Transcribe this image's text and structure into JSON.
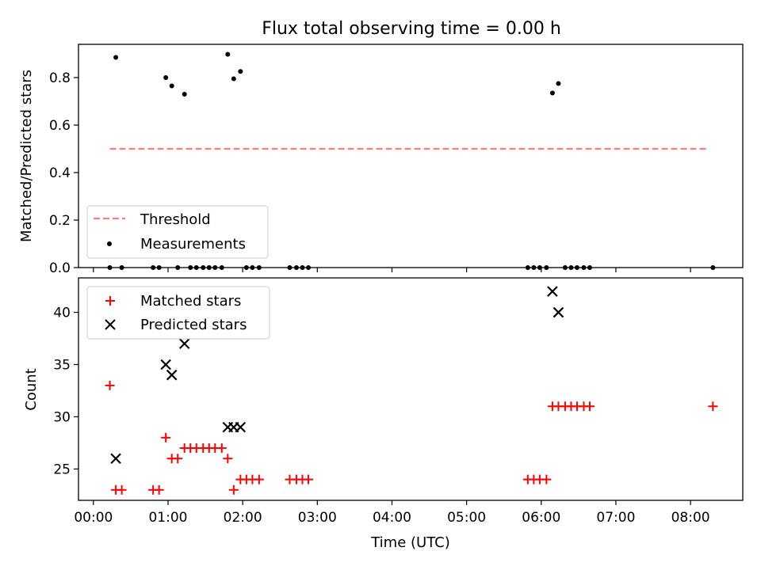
{
  "title": "Flux total observing time = 0.00 h",
  "chart_data": [
    {
      "type": "scatter",
      "ylabel": "Matched/Predicted stars",
      "xlim": [
        -0.2,
        8.7
      ],
      "ylim": [
        0,
        0.94
      ],
      "yticks": [
        0.0,
        0.2,
        0.4,
        0.6,
        0.8
      ],
      "ytick_labels": [
        "0.0",
        "0.2",
        "0.4",
        "0.6",
        "0.8"
      ],
      "legend": {
        "position": "lower-left",
        "entries": [
          "Threshold",
          "Measurements"
        ]
      },
      "threshold": {
        "name": "Threshold",
        "y": 0.5,
        "x": [
          0.22,
          8.25
        ],
        "color": "#f88080"
      },
      "series": [
        {
          "name": "Measurements",
          "color": "#000000",
          "marker": "dot",
          "x": [
            0.3,
            0.97,
            1.05,
            1.22,
            1.8,
            1.88,
            1.97,
            6.15,
            6.23,
            0.22,
            0.38,
            0.8,
            0.88,
            1.13,
            1.3,
            1.38,
            1.47,
            1.55,
            1.63,
            1.72,
            2.05,
            2.13,
            2.22,
            2.63,
            2.72,
            2.8,
            2.88,
            5.82,
            5.9,
            5.98,
            6.07,
            6.32,
            6.4,
            6.48,
            6.57,
            6.65,
            8.3
          ],
          "y": [
            0.885,
            0.8,
            0.765,
            0.73,
            0.898,
            0.795,
            0.826,
            0.735,
            0.775,
            0,
            0,
            0,
            0,
            0,
            0,
            0,
            0,
            0,
            0,
            0,
            0,
            0,
            0,
            0,
            0,
            0,
            0,
            0,
            0,
            0,
            0,
            0,
            0,
            0,
            0,
            0,
            0
          ]
        }
      ]
    },
    {
      "type": "scatter",
      "ylabel": "Count",
      "xlabel": "Time (UTC)",
      "xlim": [
        -0.2,
        8.7
      ],
      "ylim": [
        22,
        43.3
      ],
      "yticks": [
        25,
        30,
        35,
        40
      ],
      "ytick_labels": [
        "25",
        "30",
        "35",
        "40"
      ],
      "xticks": [
        0,
        1,
        2,
        3,
        4,
        5,
        6,
        7,
        8
      ],
      "xtick_labels": [
        "00:00",
        "01:00",
        "02:00",
        "03:00",
        "04:00",
        "05:00",
        "06:00",
        "07:00",
        "08:00"
      ],
      "legend": {
        "position": "upper-left",
        "entries": [
          "Matched stars",
          "Predicted stars"
        ]
      },
      "series": [
        {
          "name": "Matched stars",
          "color": "#ff0000",
          "marker": "plus",
          "x": [
            0.22,
            0.3,
            0.38,
            0.8,
            0.88,
            0.97,
            1.05,
            1.13,
            1.22,
            1.3,
            1.38,
            1.47,
            1.55,
            1.63,
            1.72,
            1.8,
            1.88,
            1.97,
            2.05,
            2.13,
            2.22,
            2.63,
            2.72,
            2.8,
            2.88,
            5.82,
            5.9,
            5.98,
            6.07,
            6.15,
            6.23,
            6.32,
            6.4,
            6.48,
            6.57,
            6.65,
            8.3
          ],
          "y": [
            33,
            23,
            23,
            23,
            23,
            28,
            26,
            26,
            27,
            27,
            27,
            27,
            27,
            27,
            27,
            26,
            23,
            24,
            24,
            24,
            24,
            24,
            24,
            24,
            24,
            24,
            24,
            24,
            24,
            31,
            31,
            31,
            31,
            31,
            31,
            31,
            31
          ]
        },
        {
          "name": "Predicted stars",
          "color": "#000000",
          "marker": "x",
          "x": [
            0.3,
            0.97,
            1.05,
            1.22,
            1.8,
            1.88,
            1.97,
            6.15,
            6.23
          ],
          "y": [
            26,
            35,
            34,
            37,
            29,
            29,
            29,
            42,
            40
          ]
        }
      ]
    }
  ]
}
